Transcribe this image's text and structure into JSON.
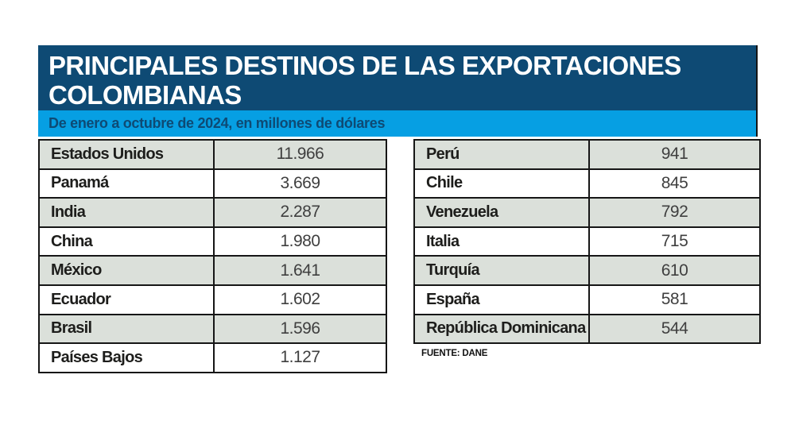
{
  "header": {
    "title": "PRINCIPALES DESTINOS DE LAS EXPORTACIONES COLOMBIANAS",
    "subtitle": "De enero a octubre de 2024, en millones de dólares"
  },
  "source": "FUENTE: DANE",
  "colors": {
    "title_band_bg": "#0e4a74",
    "subtitle_band_bg": "#069fe3",
    "subtitle_text": "#0e4a74",
    "shaded_row_bg": "#dbe0da",
    "table_border": "#161616",
    "country_text": "#1d1d1b",
    "value_text": "#3f3f3f"
  },
  "tables": {
    "left": {
      "rows": [
        {
          "country": "Estados Unidos",
          "value": "11.966"
        },
        {
          "country": "Panamá",
          "value": "3.669"
        },
        {
          "country": "India",
          "value": "2.287"
        },
        {
          "country": "China",
          "value": "1.980"
        },
        {
          "country": "México",
          "value": "1.641"
        },
        {
          "country": "Ecuador",
          "value": "1.602"
        },
        {
          "country": "Brasil",
          "value": "1.596"
        },
        {
          "country": "Países Bajos",
          "value": "1.127"
        }
      ]
    },
    "right": {
      "rows": [
        {
          "country": "Perú",
          "value": "941"
        },
        {
          "country": "Chile",
          "value": "845"
        },
        {
          "country": "Venezuela",
          "value": "792"
        },
        {
          "country": "Italia",
          "value": "715"
        },
        {
          "country": "Turquía",
          "value": "610"
        },
        {
          "country": "España",
          "value": "581"
        },
        {
          "country": "República Dominicana",
          "value": "544"
        }
      ]
    }
  },
  "chart_data": {
    "type": "table",
    "title": "PRINCIPALES DESTINOS DE LAS EXPORTACIONES COLOMBIANAS",
    "subtitle": "De enero a octubre de 2024, en millones de dólares",
    "unit": "millones de dólares",
    "source": "FUENTE: DANE",
    "categories": [
      "Estados Unidos",
      "Panamá",
      "India",
      "China",
      "México",
      "Ecuador",
      "Brasil",
      "Países Bajos",
      "Perú",
      "Chile",
      "Venezuela",
      "Italia",
      "Turquía",
      "España",
      "República Dominicana"
    ],
    "values": [
      11966,
      3669,
      2287,
      1980,
      1641,
      1602,
      1596,
      1127,
      941,
      845,
      792,
      715,
      610,
      581,
      544
    ]
  }
}
